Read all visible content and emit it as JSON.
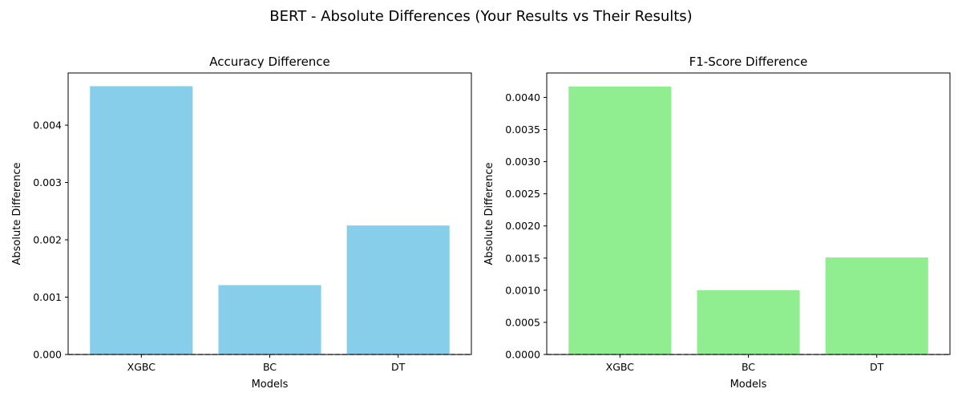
{
  "figure": {
    "suptitle": "BERT - Absolute Differences (Your Results vs Their Results)"
  },
  "chart_data": [
    {
      "type": "bar",
      "title": "Accuracy Difference",
      "xlabel": "Models",
      "ylabel": "Absolute Difference",
      "categories": [
        "XGBC",
        "BC",
        "DT"
      ],
      "values": [
        0.00468,
        0.00121,
        0.00225
      ],
      "ylim": [
        0,
        0.00491
      ],
      "yticks": [
        0.0,
        0.001,
        0.002,
        0.003,
        0.004
      ],
      "ytick_labels": [
        "0.000",
        "0.001",
        "0.002",
        "0.003",
        "0.004"
      ],
      "bar_color": "#87CEEB",
      "reference_line": {
        "y": 0,
        "style": "dashed",
        "color": "#808080"
      },
      "grid": false,
      "legend": "none"
    },
    {
      "type": "bar",
      "title": "F1-Score Difference",
      "xlabel": "Models",
      "ylabel": "Absolute Difference",
      "categories": [
        "XGBC",
        "BC",
        "DT"
      ],
      "values": [
        0.00417,
        0.001,
        0.00151
      ],
      "ylim": [
        0,
        0.00438
      ],
      "yticks": [
        0.0,
        0.0005,
        0.001,
        0.0015,
        0.002,
        0.0025,
        0.003,
        0.0035,
        0.004
      ],
      "ytick_labels": [
        "0.0000",
        "0.0005",
        "0.0010",
        "0.0015",
        "0.0020",
        "0.0025",
        "0.0030",
        "0.0035",
        "0.0040"
      ],
      "bar_color": "#90EE90",
      "reference_line": {
        "y": 0,
        "style": "dashed",
        "color": "#808080"
      },
      "grid": false,
      "legend": "none"
    }
  ]
}
